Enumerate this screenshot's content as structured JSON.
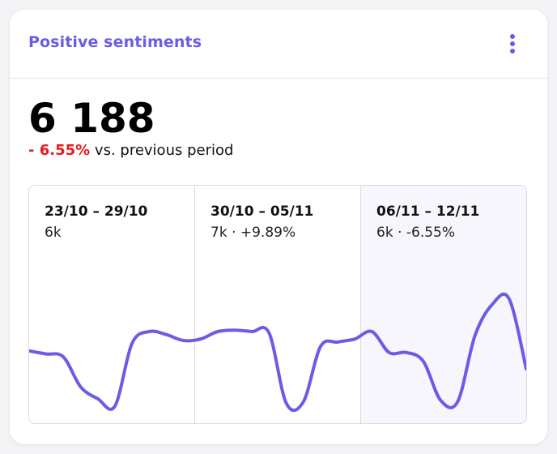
{
  "card": {
    "title": "Positive sentiments",
    "menu_icon": "kebab-vertical-icon",
    "accent_color": "#6b5ce7"
  },
  "summary": {
    "total": "6 188",
    "change": "- 6.55%",
    "change_suffix": "vs. previous period",
    "change_color": "#e81c1c"
  },
  "periods": [
    {
      "range": "23/10 – 29/10",
      "value": "6k"
    },
    {
      "range": "30/10 – 05/11",
      "value": "7k · +9.89%"
    },
    {
      "range": "06/11 – 12/11",
      "value": "6k · -6.55%",
      "selected": true
    }
  ],
  "chart_data": {
    "type": "line",
    "series": [
      {
        "values": [
          0.37,
          0.35,
          0.33,
          0.13,
          0.05,
          0.0,
          0.42,
          0.5,
          0.48,
          0.44,
          0.45,
          0.5,
          0.51,
          0.5,
          0.49,
          0.02,
          0.03,
          0.4,
          0.43,
          0.45,
          0.5,
          0.36,
          0.36,
          0.3,
          0.04,
          0.03,
          0.47,
          0.68,
          0.72,
          0.25
        ]
      }
    ],
    "grid": false,
    "legend": "none"
  }
}
